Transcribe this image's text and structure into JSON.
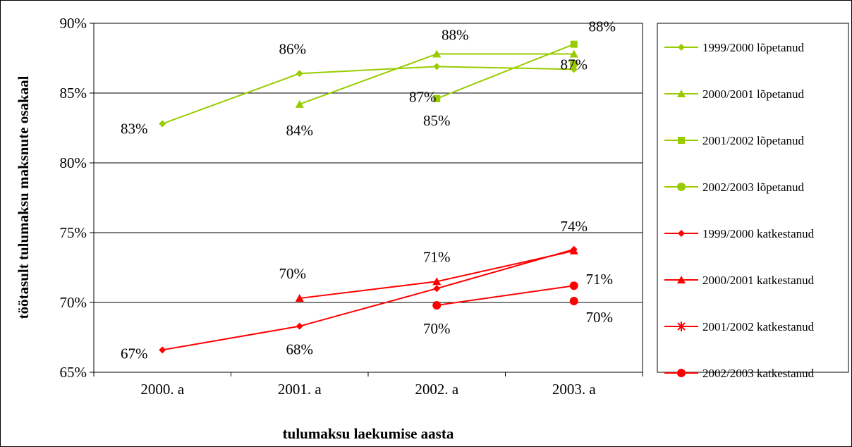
{
  "chart_data": {
    "type": "line",
    "categories": [
      "2000. a",
      "2001. a",
      "2002. a",
      "2003. a"
    ],
    "xlabel": "tulumaksu laekumise aasta",
    "ylabel": "töötasult tulumaksu maksnute osakaal",
    "ylim": [
      65,
      90
    ],
    "yticks": [
      "65%",
      "70%",
      "75%",
      "80%",
      "85%",
      "90%"
    ],
    "grid": "horizontal",
    "legend_position": "right",
    "series": [
      {
        "name": "1999/2000 lõpetanud",
        "color": "#99cc00",
        "marker": "diamond",
        "values": [
          82.8,
          86.4,
          86.9,
          86.7
        ],
        "labels": [
          "83%",
          "86%",
          "87%",
          "87%"
        ]
      },
      {
        "name": "2000/2001 lõpetanud",
        "color": "#99cc00",
        "marker": "triangle",
        "values": [
          null,
          84.2,
          87.8,
          87.8
        ],
        "labels": [
          null,
          "84%",
          "88%",
          null
        ]
      },
      {
        "name": "2001/2002 lõpetanud",
        "color": "#99cc00",
        "marker": "square",
        "values": [
          null,
          null,
          84.6,
          88.5
        ],
        "labels": [
          null,
          null,
          "85%",
          "88%"
        ]
      },
      {
        "name": "2002/2003 lõpetanud",
        "color": "#99cc00",
        "marker": "circle",
        "values": [
          null,
          null,
          null,
          87.1
        ],
        "labels": [
          null,
          null,
          null,
          null
        ]
      },
      {
        "name": "1999/2000 katkestanud",
        "color": "#ff0000",
        "marker": "diamond",
        "values": [
          66.6,
          68.3,
          71.0,
          73.8
        ],
        "labels": [
          "67%",
          "68%",
          null,
          "74%"
        ]
      },
      {
        "name": "2000/2001 katkestanud",
        "color": "#ff0000",
        "marker": "triangle",
        "values": [
          null,
          70.3,
          71.5,
          73.7
        ],
        "labels": [
          null,
          "70%",
          "71%",
          null
        ]
      },
      {
        "name": "2001/2002 katkestanud",
        "color": "#ff0000",
        "marker": "star",
        "values": [
          null,
          null,
          null,
          null
        ],
        "labels": [
          null,
          null,
          null,
          null
        ]
      },
      {
        "name": "2002/2003 katkestanud",
        "color": "#ff0000",
        "marker": "circle",
        "values": [
          null,
          null,
          69.8,
          71.2
        ],
        "labels": [
          null,
          null,
          "70%",
          "71%"
        ]
      },
      {
        "name": "",
        "color": "#ff0000",
        "marker": "circle",
        "values": [
          null,
          null,
          null,
          70.1
        ],
        "labels": [
          null,
          null,
          null,
          "70%"
        ]
      }
    ]
  }
}
